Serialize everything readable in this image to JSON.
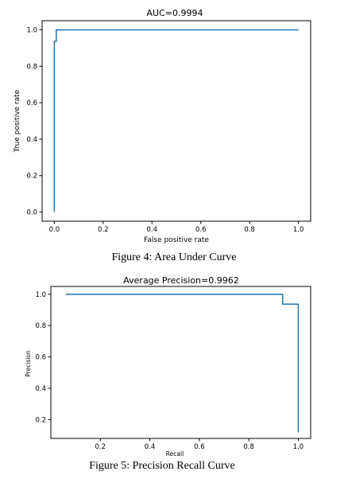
{
  "chart_data": [
    {
      "type": "line",
      "title": "AUC=0.9994",
      "xlabel": "False positive rate",
      "ylabel": "True positive rate",
      "xlim": [
        -0.05,
        1.05
      ],
      "ylim": [
        -0.05,
        1.05
      ],
      "xticks": [
        "0.0",
        "0.2",
        "0.4",
        "0.6",
        "0.8",
        "1.0"
      ],
      "yticks": [
        "0.0",
        "0.2",
        "0.4",
        "0.6",
        "0.8",
        "1.0"
      ],
      "grid": false,
      "series": [
        {
          "color": "#1f77b4",
          "x": [
            0.0,
            0.0,
            0.0,
            0.008,
            0.008,
            1.0
          ],
          "y": [
            0.0,
            0.937,
            0.937,
            0.937,
            1.0,
            1.0
          ]
        }
      ]
    },
    {
      "type": "line",
      "title": "Average Precision=0.9962",
      "xlabel": "Recall",
      "ylabel": "Precision",
      "xlim": [
        0.0,
        1.05
      ],
      "ylim": [
        0.08,
        1.05
      ],
      "xticks": [
        "0.2",
        "0.4",
        "0.6",
        "0.8",
        "1.0"
      ],
      "yticks": [
        "0.2",
        "0.4",
        "0.6",
        "0.8",
        "1.0"
      ],
      "grid": false,
      "series": [
        {
          "color": "#1f77b4",
          "x": [
            0.06,
            0.937,
            0.937,
            1.0,
            1.0
          ],
          "y": [
            1.0,
            1.0,
            0.937,
            0.937,
            0.118
          ]
        }
      ]
    }
  ],
  "captions": {
    "figure4": "Figure 4: Area Under Curve",
    "figure5": "Figure 5: Precision Recall Curve"
  }
}
